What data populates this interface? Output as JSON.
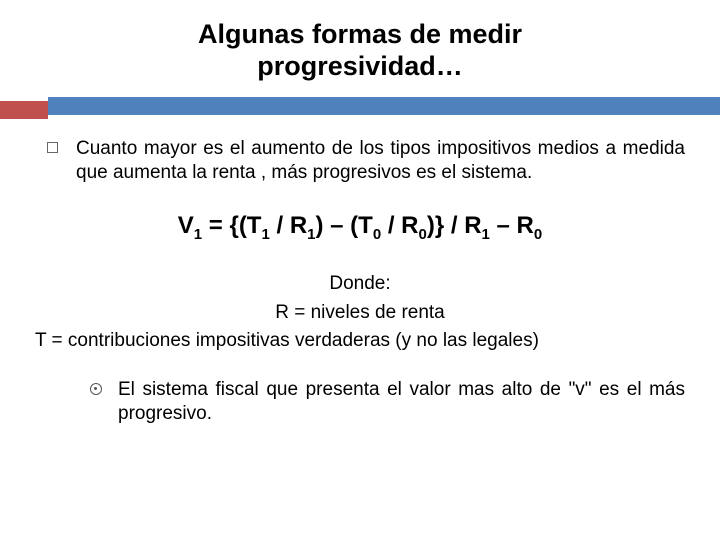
{
  "title_line1": "Algunas formas de medir",
  "title_line2": "progresividad…",
  "colors": {
    "bar_red": "#c0504d",
    "bar_blue": "#4f81bd",
    "text": "#000000",
    "background": "#ffffff"
  },
  "bullet_main": "Cuanto mayor es el aumento de los tipos impositivos medios a medida que aumenta la renta , más progresivos es el sistema.",
  "formula": {
    "lhs": "V",
    "lhs_sub": "1",
    "eq": " = {(T",
    "t1_sub": "1",
    "mid1": " / R",
    "r1_sub": "1",
    "mid2": ") – (T",
    "t0_sub": "0",
    "mid3": " / R",
    "r0_sub": "0",
    "mid4": ")} / R",
    "r1b_sub": "1",
    "mid5": " – R",
    "r0b_sub": "0"
  },
  "donde_label": "Donde:",
  "donde_r": "R = niveles de renta",
  "donde_t": "T = contribuciones impositivas verdaderas (y no las legales)",
  "sub_bullet": "El sistema fiscal que presenta el valor mas alto de \"v\" es el más progresivo."
}
